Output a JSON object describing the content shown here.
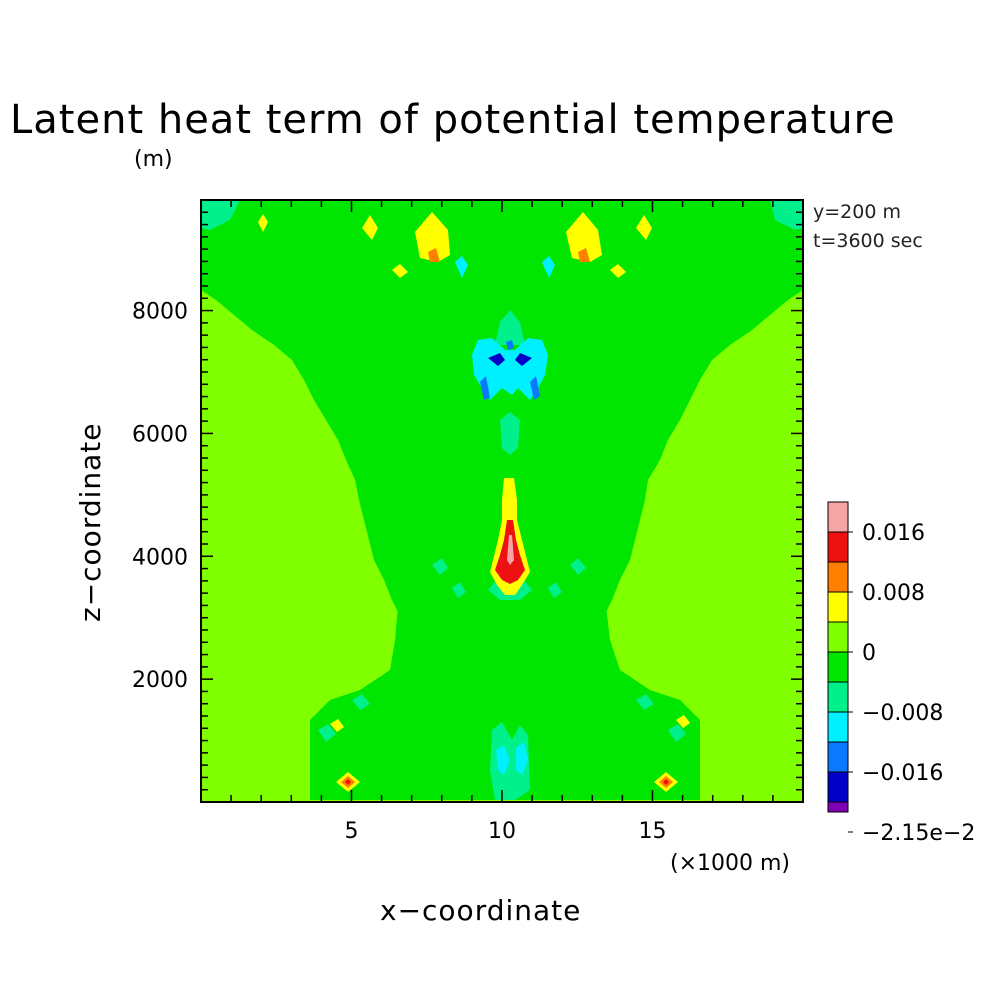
{
  "chart_data": {
    "type": "heatmap",
    "title": "Latent heat term of potential temperature",
    "y_unit": "(m)",
    "x_unit": "(×1000 m)",
    "xlabel": "x−coordinate",
    "ylabel": "z−coordinate",
    "annotations": [
      "y=200 m",
      "t=3600 sec"
    ],
    "xlim": [
      0,
      20
    ],
    "ylim": [
      0,
      9800
    ],
    "xticks": [
      5,
      10,
      15
    ],
    "xtick_labels": [
      "5",
      "10",
      "15"
    ],
    "yticks": [
      2000,
      4000,
      6000,
      8000
    ],
    "ytick_labels": [
      "2000",
      "4000",
      "6000",
      "8000"
    ],
    "background_value_range": "0 to 0.004",
    "colorbar": {
      "levels": [
        {
          "color": "#f4a6a6",
          "range": "above 0.016"
        },
        {
          "color": "#ee1111",
          "range": "0.012 to 0.016"
        },
        {
          "color": "#ff7f00",
          "range": "0.008 to 0.012"
        },
        {
          "color": "#ffff00",
          "range": "0.004 to 0.008"
        },
        {
          "color": "#80ff00",
          "range": "0 to 0.004"
        },
        {
          "color": "#00e600",
          "range": "-0.004 to 0"
        },
        {
          "color": "#00f08c",
          "range": "-0.008 to -0.004"
        },
        {
          "color": "#00f0ff",
          "range": "-0.012 to -0.008"
        },
        {
          "color": "#0a78ff",
          "range": "-0.016 to -0.012"
        },
        {
          "color": "#0000c8",
          "range": "-0.02 to -0.016"
        },
        {
          "color": "#8000b4",
          "range": "-0.0215 to -0.02"
        }
      ],
      "labels": [
        "0.016",
        "0.008",
        "0",
        "−0.008",
        "−0.016",
        "−2.15e−2"
      ]
    },
    "features": [
      {
        "name": "central warm core",
        "x": 10.2,
        "z_range": [
          3600,
          5300
        ],
        "max_value": 0.016,
        "min_value": 0.004
      },
      {
        "name": "upper cold anomaly",
        "x": 10.2,
        "z_range": [
          6900,
          7700
        ],
        "min_value": -0.02
      },
      {
        "name": "near-surface warm spots",
        "x": [
          5,
          15.5
        ],
        "z": 350,
        "max_value": 0.012
      },
      {
        "name": "cloud-top warm cells",
        "x": [
          2,
          7.8,
          12.6,
          16.5
        ],
        "z_range": [
          8800,
          9500
        ],
        "max_value": 0.012
      }
    ]
  }
}
